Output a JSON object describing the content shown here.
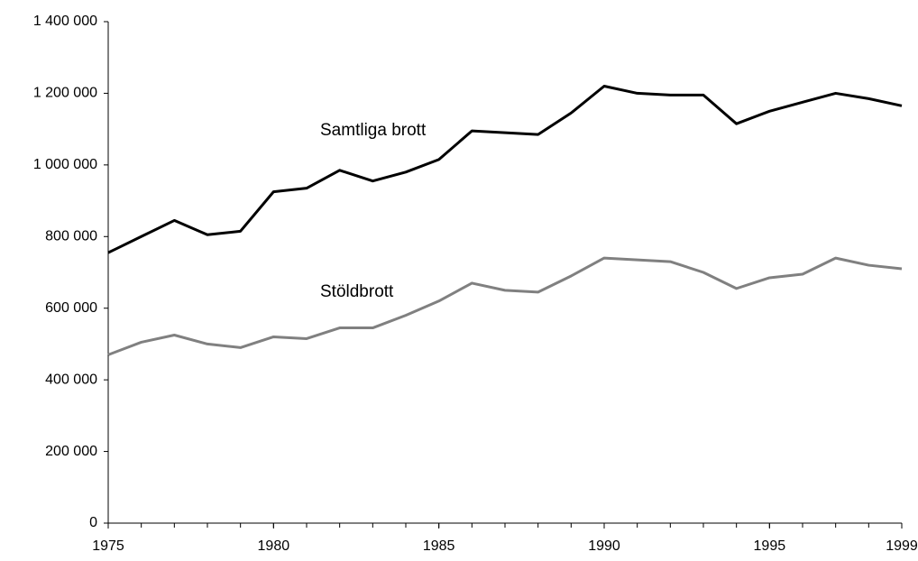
{
  "chart_data": {
    "type": "line",
    "x": [
      1975,
      1976,
      1977,
      1978,
      1979,
      1980,
      1981,
      1982,
      1983,
      1984,
      1985,
      1986,
      1987,
      1988,
      1989,
      1990,
      1991,
      1992,
      1993,
      1994,
      1995,
      1996,
      1997,
      1998,
      1999
    ],
    "series": [
      {
        "name": "Samtliga brott",
        "color": "#000000",
        "values": [
          755000,
          800000,
          845000,
          805000,
          815000,
          925000,
          935000,
          985000,
          955000,
          980000,
          1015000,
          1095000,
          1090000,
          1085000,
          1145000,
          1220000,
          1200000,
          1195000,
          1195000,
          1115000,
          1150000,
          1175000,
          1200000,
          1185000,
          1165000
        ]
      },
      {
        "name": "Stöldbrott",
        "color": "#808080",
        "values": [
          470000,
          505000,
          525000,
          500000,
          490000,
          520000,
          515000,
          545000,
          545000,
          580000,
          620000,
          670000,
          650000,
          645000,
          690000,
          740000,
          735000,
          730000,
          700000,
          655000,
          685000,
          695000,
          740000,
          720000,
          710000
        ]
      }
    ],
    "xlim": [
      1975,
      1999
    ],
    "xticks": [
      1975,
      1980,
      1985,
      1990,
      1995,
      1999
    ],
    "ylim": [
      0,
      1400000
    ],
    "yticks": [
      0,
      {
        "value": 200000,
        "label": "200 000"
      },
      {
        "value": 400000,
        "label": "400 000"
      },
      {
        "value": 600000,
        "label": "600 000"
      },
      {
        "value": 800000,
        "label": "800 000"
      },
      {
        "value": 1000000,
        "label": "1 000 000"
      },
      {
        "value": 1200000,
        "label": "1 200 000"
      },
      {
        "value": 1400000,
        "label": "1 400 000"
      }
    ],
    "grid": false
  }
}
